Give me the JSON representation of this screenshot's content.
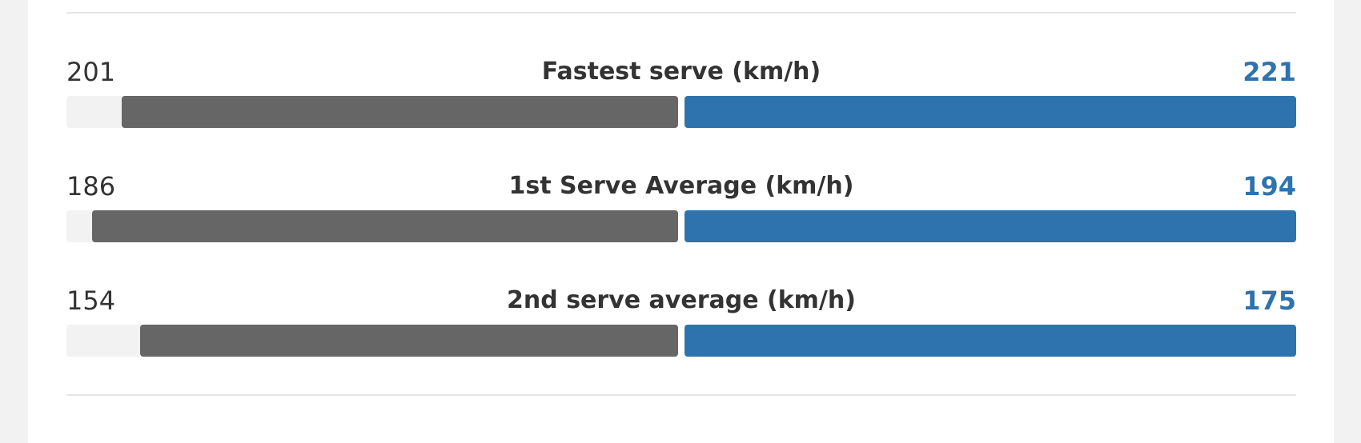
{
  "colors": {
    "player_left": "#666666",
    "player_right": "#2e73ad",
    "track": "#f2f2f2"
  },
  "stats": [
    {
      "title": "Fastest serve (km/h)",
      "left": 201,
      "right": 221
    },
    {
      "title": "1st Serve Average (km/h)",
      "left": 186,
      "right": 194
    },
    {
      "title": "2nd serve average (km/h)",
      "left": 154,
      "right": 175
    }
  ]
}
